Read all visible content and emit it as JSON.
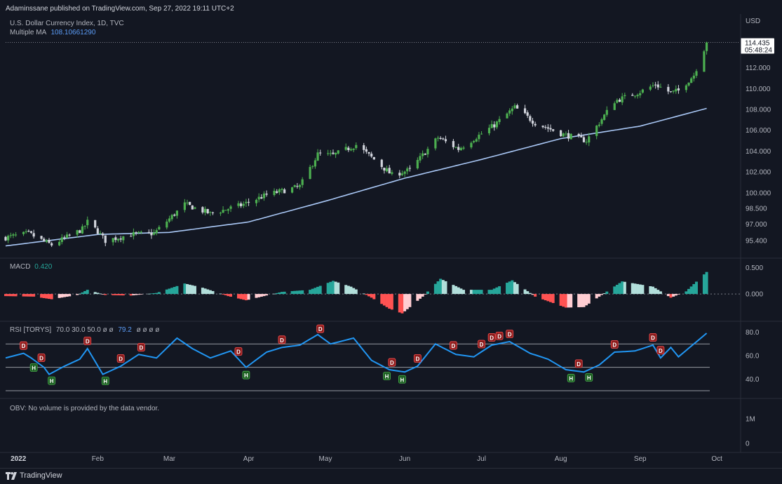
{
  "header": {
    "publisher_line": "Adaminssane published on TradingView.com, Sep 27, 2022 19:11 UTC+2",
    "symbol_line": "U.S. Dollar Currency Index, 1D, TVC",
    "ma_label": "Multiple MA",
    "ma_value": "108.10661290"
  },
  "price_pane": {
    "currency": "USD",
    "last_price": "114.435",
    "countdown": "05:48:24",
    "y_ticks": [
      "112.000",
      "110.000",
      "108.000",
      "106.000",
      "104.000",
      "102.000",
      "100.000",
      "98.500",
      "97.000",
      "95.400"
    ]
  },
  "macd_pane": {
    "label": "MACD",
    "value": "0.420",
    "y_ticks": [
      "0.500",
      "0.000"
    ]
  },
  "rsi_pane": {
    "label": "RSI [TORYS]",
    "params": "70.0  30.0  50.0  ø  ø  79.2  ø  ø  ø  ø",
    "params_pre": "70.0  30.0  50.0  ø  ø",
    "params_value": "79.2",
    "params_post": "ø  ø  ø  ø",
    "y_ticks": [
      "80.0",
      "60.0",
      "40.0"
    ],
    "marker_high": "H",
    "marker_div": "D"
  },
  "obv_pane": {
    "message": "OBV: No volume is provided by the data vendor.",
    "y_ticks": [
      "1M",
      "0"
    ]
  },
  "x_axis": {
    "labels": [
      "2022",
      "Feb",
      "Mar",
      "Apr",
      "May",
      "Jun",
      "Jul",
      "Aug",
      "Sep",
      "Oct"
    ]
  },
  "footer": {
    "brand": "TradingView"
  },
  "colors": {
    "background": "#131722",
    "up": "#4caf50",
    "down": "#d1d4dc",
    "ma": "#a9c7f5",
    "rsi": "#2196f3",
    "macd_pos_strong": "#26a69a",
    "macd_pos_weak": "#b2dfdb",
    "macd_neg_strong": "#ff5252",
    "macd_neg_weak": "#ffcdd2"
  },
  "chart_data": [
    {
      "type": "candlestick",
      "title": "U.S. Dollar Currency Index, 1D, TVC",
      "ylabel": "USD",
      "ylim": [
        94.4,
        114.6
      ],
      "x_range": [
        "2021-12-27",
        "2022-10-10"
      ],
      "series_anchors": [
        [
          "2021-12-27",
          95.7
        ],
        [
          "2022-01-05",
          96.1
        ],
        [
          "2022-01-12",
          95.2
        ],
        [
          "2022-01-14",
          95.0
        ],
        [
          "2022-01-26",
          96.5
        ],
        [
          "2022-01-28",
          97.2
        ],
        [
          "2022-02-01",
          96.3
        ],
        [
          "2022-02-04",
          95.4
        ],
        [
          "2022-02-14",
          96.0
        ],
        [
          "2022-02-23",
          96.1
        ],
        [
          "2022-03-07",
          98.9
        ],
        [
          "2022-03-17",
          98.0
        ],
        [
          "2022-03-29",
          98.8
        ],
        [
          "2022-04-08",
          99.8
        ],
        [
          "2022-04-21",
          100.6
        ],
        [
          "2022-04-28",
          103.7
        ],
        [
          "2022-05-04",
          103.6
        ],
        [
          "2022-05-13",
          104.6
        ],
        [
          "2022-05-20",
          103.2
        ],
        [
          "2022-05-27",
          101.7
        ],
        [
          "2022-06-03",
          102.2
        ],
        [
          "2022-06-14",
          105.3
        ],
        [
          "2022-06-22",
          104.2
        ],
        [
          "2022-07-06",
          106.5
        ],
        [
          "2022-07-14",
          108.2
        ],
        [
          "2022-07-22",
          106.7
        ],
        [
          "2022-08-02",
          105.6
        ],
        [
          "2022-08-11",
          105.0
        ],
        [
          "2022-08-22",
          108.8
        ],
        [
          "2022-09-01",
          109.7
        ],
        [
          "2022-09-07",
          110.4
        ],
        [
          "2022-09-13",
          109.6
        ],
        [
          "2022-09-16",
          109.8
        ],
        [
          "2022-09-22",
          111.3
        ],
        [
          "2022-09-27",
          114.4
        ]
      ],
      "last": 114.435
    },
    {
      "type": "line",
      "series": [
        {
          "name": "Multiple MA",
          "anchors": [
            [
              "2021-12-27",
              94.9
            ],
            [
              "2022-02-01",
              96.0
            ],
            [
              "2022-03-01",
              96.2
            ],
            [
              "2022-04-01",
              97.2
            ],
            [
              "2022-05-01",
              99.2
            ],
            [
              "2022-06-01",
              101.4
            ],
            [
              "2022-07-01",
              103.2
            ],
            [
              "2022-08-01",
              105.2
            ],
            [
              "2022-09-01",
              106.4
            ],
            [
              "2022-09-27",
              108.1
            ]
          ]
        }
      ],
      "last_value": 108.1066129
    },
    {
      "type": "bar",
      "title": "MACD",
      "ylim": [
        -0.4,
        0.55
      ],
      "anchors": [
        [
          "2021-12-27",
          -0.04
        ],
        [
          "2022-01-07",
          -0.05
        ],
        [
          "2022-01-14",
          -0.1
        ],
        [
          "2022-01-24",
          -0.02
        ],
        [
          "2022-01-28",
          0.08
        ],
        [
          "2022-02-04",
          -0.02
        ],
        [
          "2022-02-14",
          -0.03
        ],
        [
          "2022-02-24",
          0.02
        ],
        [
          "2022-03-07",
          0.2
        ],
        [
          "2022-03-14",
          0.12
        ],
        [
          "2022-03-24",
          -0.04
        ],
        [
          "2022-03-31",
          -0.12
        ],
        [
          "2022-04-14",
          0.04
        ],
        [
          "2022-04-25",
          0.08
        ],
        [
          "2022-05-04",
          0.25
        ],
        [
          "2022-05-11",
          0.14
        ],
        [
          "2022-05-19",
          -0.07
        ],
        [
          "2022-05-26",
          -0.28
        ],
        [
          "2022-05-31",
          -0.37
        ],
        [
          "2022-06-08",
          -0.05
        ],
        [
          "2022-06-15",
          0.29
        ],
        [
          "2022-06-24",
          0.08
        ],
        [
          "2022-07-05",
          0.08
        ],
        [
          "2022-07-13",
          0.26
        ],
        [
          "2022-07-22",
          -0.05
        ],
        [
          "2022-08-03",
          -0.26
        ],
        [
          "2022-08-10",
          -0.25
        ],
        [
          "2022-08-16",
          -0.05
        ],
        [
          "2022-08-25",
          0.24
        ],
        [
          "2022-09-06",
          0.14
        ],
        [
          "2022-09-13",
          -0.07
        ],
        [
          "2022-09-19",
          0.05
        ],
        [
          "2022-09-27",
          0.42
        ]
      ],
      "last": 0.42
    },
    {
      "type": "line",
      "title": "RSI [TORYS]",
      "ylim": [
        27,
        84
      ],
      "levels": [
        70,
        50,
        30
      ],
      "series": [
        {
          "name": "RSI [TORYS]",
          "anchors": [
            [
              "2021-12-27",
              58
            ],
            [
              "2022-01-03",
              62
            ],
            [
              "2022-01-06",
              58
            ],
            [
              "2022-01-11",
              50
            ],
            [
              "2022-01-13",
              44
            ],
            [
              "2022-01-19",
              51
            ],
            [
              "2022-01-25",
              57
            ],
            [
              "2022-01-28",
              66
            ],
            [
              "2022-02-03",
              44
            ],
            [
              "2022-02-10",
              51
            ],
            [
              "2022-02-17",
              61
            ],
            [
              "2022-02-24",
              58
            ],
            [
              "2022-03-04",
              75
            ],
            [
              "2022-03-10",
              66
            ],
            [
              "2022-03-17",
              58
            ],
            [
              "2022-03-25",
              64
            ],
            [
              "2022-03-31",
              50
            ],
            [
              "2022-04-08",
              63
            ],
            [
              "2022-04-14",
              67
            ],
            [
              "2022-04-21",
              69
            ],
            [
              "2022-04-28",
              78
            ],
            [
              "2022-05-03",
              70
            ],
            [
              "2022-05-12",
              75
            ],
            [
              "2022-05-19",
              56
            ],
            [
              "2022-05-26",
              48
            ],
            [
              "2022-06-01",
              46
            ],
            [
              "2022-06-06",
              51
            ],
            [
              "2022-06-13",
              70
            ],
            [
              "2022-06-21",
              61
            ],
            [
              "2022-06-28",
              59
            ],
            [
              "2022-07-05",
              69
            ],
            [
              "2022-07-12",
              72
            ],
            [
              "2022-07-20",
              62
            ],
            [
              "2022-07-27",
              57
            ],
            [
              "2022-08-03",
              48
            ],
            [
              "2022-08-10",
              46
            ],
            [
              "2022-08-16",
              52
            ],
            [
              "2022-08-22",
              63
            ],
            [
              "2022-08-30",
              64
            ],
            [
              "2022-09-06",
              69
            ],
            [
              "2022-09-09",
              58
            ],
            [
              "2022-09-13",
              67
            ],
            [
              "2022-09-16",
              59
            ],
            [
              "2022-09-22",
              70
            ],
            [
              "2022-09-27",
              79.2
            ]
          ]
        }
      ],
      "last": 79.2,
      "markers_high": [
        "2022-01-07",
        "2022-01-14",
        "2022-02-04",
        "2022-03-31",
        "2022-05-25",
        "2022-05-31",
        "2022-08-05",
        "2022-08-12"
      ],
      "markers_div": [
        "2022-01-03",
        "2022-01-10",
        "2022-01-28",
        "2022-02-10",
        "2022-02-18",
        "2022-03-28",
        "2022-04-14",
        "2022-04-29",
        "2022-05-27",
        "2022-06-06",
        "2022-06-20",
        "2022-07-01",
        "2022-07-05",
        "2022-07-08",
        "2022-07-12",
        "2022-08-08",
        "2022-08-22",
        "2022-09-06",
        "2022-09-09"
      ]
    }
  ]
}
